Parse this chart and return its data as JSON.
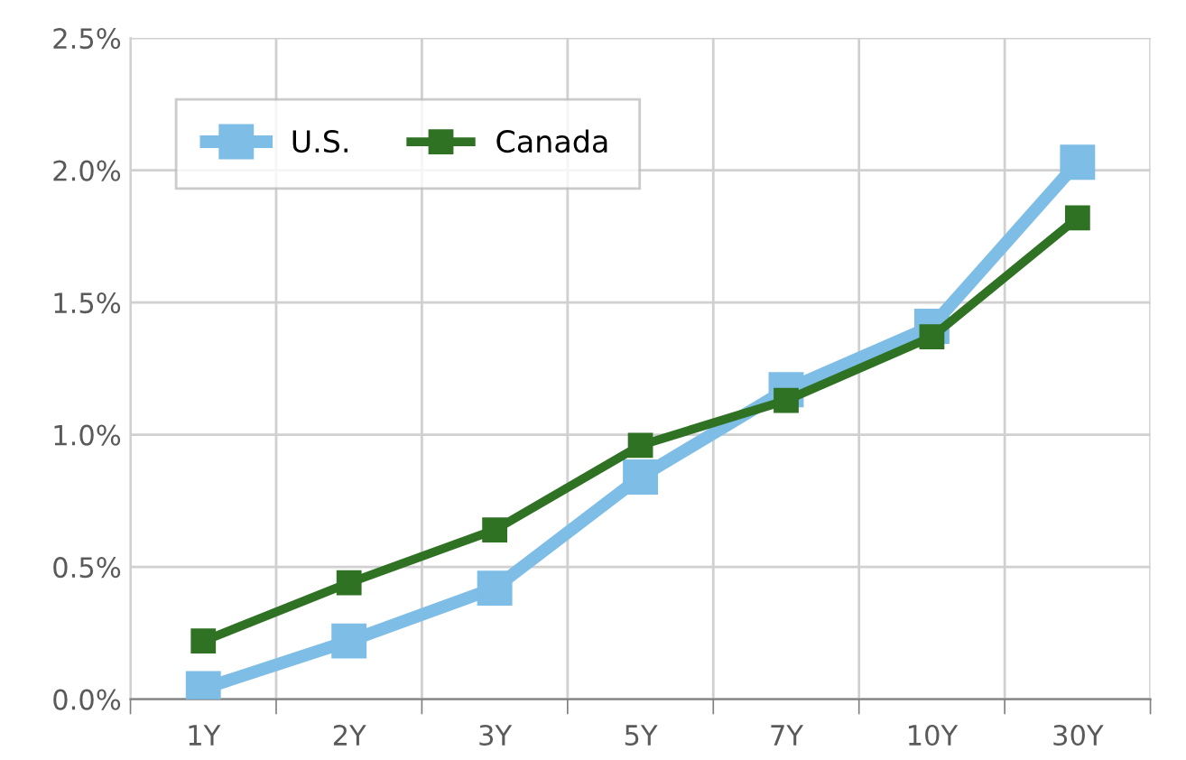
{
  "chart_data": {
    "type": "line",
    "categories": [
      "1Y",
      "2Y",
      "3Y",
      "5Y",
      "7Y",
      "10Y",
      "30Y"
    ],
    "series": [
      {
        "name": "U.S.",
        "color": "#7dbde6",
        "values": [
          0.04,
          0.22,
          0.42,
          0.84,
          1.17,
          1.41,
          2.03
        ]
      },
      {
        "name": "Canada",
        "color": "#2f7223",
        "values": [
          0.22,
          0.44,
          0.64,
          0.96,
          1.13,
          1.37,
          1.82
        ]
      }
    ],
    "ylim": [
      0,
      2.5
    ],
    "yticks": [
      {
        "value": 0,
        "label": "0.0%"
      },
      {
        "value": 0.5,
        "label": "0.5%"
      },
      {
        "value": 1.0,
        "label": "1.0%"
      },
      {
        "value": 1.5,
        "label": "1.5%"
      },
      {
        "value": 2.0,
        "label": "2.0%"
      },
      {
        "value": 2.5,
        "label": "2.5%"
      }
    ],
    "grid": true,
    "legend": "top left",
    "marker": "square",
    "line_style": "solid"
  }
}
